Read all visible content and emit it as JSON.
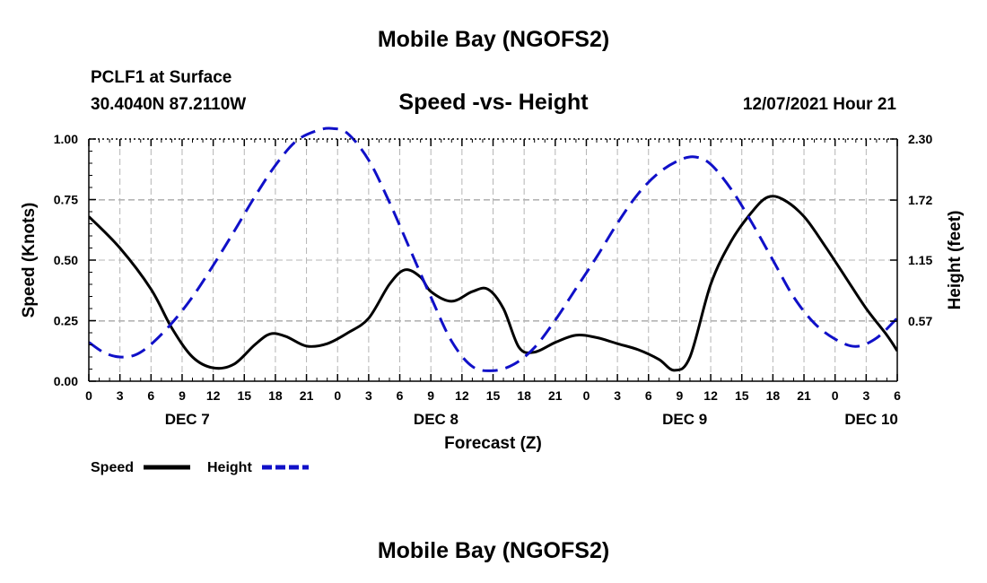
{
  "header": {
    "title": "Mobile Bay (NGOFS2)",
    "station": "PCLF1 at Surface",
    "coords": "30.4040N  87.2110W",
    "subtitle": "Speed -vs- Height",
    "datetime": "12/07/2021 Hour 21"
  },
  "footer": {
    "title": "Mobile Bay (NGOFS2)"
  },
  "colors": {
    "speed": "#000000",
    "height": "#1010c8",
    "grid": "#b4b4b4"
  },
  "chart_data": {
    "type": "line",
    "title": "Speed -vs- Height",
    "xlabel": "Forecast (Z)",
    "ylabel": "Speed (Knots)",
    "y2label": "Height (feet)",
    "x_unit": "hours from 00Z DEC 7",
    "xlim": [
      0,
      78
    ],
    "ylim": [
      0,
      1.0
    ],
    "y2lim": [
      0.0,
      2.3
    ],
    "x_ticks": [
      {
        "x": 0,
        "label": "0"
      },
      {
        "x": 3,
        "label": "3"
      },
      {
        "x": 6,
        "label": "6"
      },
      {
        "x": 9,
        "label": "9"
      },
      {
        "x": 12,
        "label": "12"
      },
      {
        "x": 15,
        "label": "15"
      },
      {
        "x": 18,
        "label": "18"
      },
      {
        "x": 21,
        "label": "21"
      },
      {
        "x": 24,
        "label": "0"
      },
      {
        "x": 27,
        "label": "3"
      },
      {
        "x": 30,
        "label": "6"
      },
      {
        "x": 33,
        "label": "9"
      },
      {
        "x": 36,
        "label": "12"
      },
      {
        "x": 39,
        "label": "15"
      },
      {
        "x": 42,
        "label": "18"
      },
      {
        "x": 45,
        "label": "21"
      },
      {
        "x": 48,
        "label": "0"
      },
      {
        "x": 51,
        "label": "3"
      },
      {
        "x": 54,
        "label": "6"
      },
      {
        "x": 57,
        "label": "9"
      },
      {
        "x": 60,
        "label": "12"
      },
      {
        "x": 63,
        "label": "15"
      },
      {
        "x": 66,
        "label": "18"
      },
      {
        "x": 69,
        "label": "21"
      },
      {
        "x": 72,
        "label": "0"
      },
      {
        "x": 75,
        "label": "3"
      },
      {
        "x": 78,
        "label": "6"
      }
    ],
    "day_labels": [
      {
        "x": 9.5,
        "label": "DEC 7"
      },
      {
        "x": 33.5,
        "label": "DEC 8"
      },
      {
        "x": 57.5,
        "label": "DEC 9"
      },
      {
        "x": 75.5,
        "label": "DEC 10"
      }
    ],
    "y_ticks": [
      {
        "v": 0.0,
        "label": "0.00"
      },
      {
        "v": 0.25,
        "label": "0.25"
      },
      {
        "v": 0.5,
        "label": "0.50"
      },
      {
        "v": 0.75,
        "label": "0.75"
      },
      {
        "v": 1.0,
        "label": "1.00"
      }
    ],
    "y2_ticks": [
      {
        "v": 0.57,
        "label": "0.57"
      },
      {
        "v": 1.15,
        "label": "1.15"
      },
      {
        "v": 1.72,
        "label": "1.72"
      },
      {
        "v": 2.3,
        "label": "2.30"
      }
    ],
    "legend": [
      {
        "label": "Speed",
        "series": "speed"
      },
      {
        "label": "Height",
        "series": "height"
      }
    ],
    "series": [
      {
        "name": "Speed",
        "key": "speed",
        "axis": "left",
        "dash": false,
        "points": [
          [
            0,
            0.68
          ],
          [
            3,
            0.55
          ],
          [
            6,
            0.38
          ],
          [
            8,
            0.22
          ],
          [
            10,
            0.1
          ],
          [
            12,
            0.055
          ],
          [
            14,
            0.07
          ],
          [
            16,
            0.15
          ],
          [
            17.5,
            0.195
          ],
          [
            19,
            0.185
          ],
          [
            21,
            0.145
          ],
          [
            23,
            0.155
          ],
          [
            25,
            0.2
          ],
          [
            27,
            0.26
          ],
          [
            29,
            0.4
          ],
          [
            30.5,
            0.46
          ],
          [
            32,
            0.43
          ],
          [
            33,
            0.37
          ],
          [
            35,
            0.33
          ],
          [
            37,
            0.37
          ],
          [
            38.5,
            0.38
          ],
          [
            40,
            0.3
          ],
          [
            41.5,
            0.14
          ],
          [
            43,
            0.12
          ],
          [
            45,
            0.16
          ],
          [
            47,
            0.19
          ],
          [
            49,
            0.18
          ],
          [
            51,
            0.155
          ],
          [
            53,
            0.13
          ],
          [
            55,
            0.09
          ],
          [
            56.5,
            0.045
          ],
          [
            58,
            0.1
          ],
          [
            60,
            0.4
          ],
          [
            62,
            0.58
          ],
          [
            64,
            0.7
          ],
          [
            65.5,
            0.76
          ],
          [
            67,
            0.75
          ],
          [
            69,
            0.68
          ],
          [
            71,
            0.56
          ],
          [
            73,
            0.43
          ],
          [
            75,
            0.3
          ],
          [
            77,
            0.19
          ],
          [
            78,
            0.125
          ]
        ]
      },
      {
        "name": "Height",
        "key": "height",
        "axis": "right",
        "dash": true,
        "points": [
          [
            0,
            0.37
          ],
          [
            1.5,
            0.27
          ],
          [
            3,
            0.23
          ],
          [
            4.5,
            0.25
          ],
          [
            6,
            0.35
          ],
          [
            8,
            0.55
          ],
          [
            10,
            0.8
          ],
          [
            12,
            1.1
          ],
          [
            14,
            1.42
          ],
          [
            16,
            1.75
          ],
          [
            18,
            2.05
          ],
          [
            20,
            2.28
          ],
          [
            22,
            2.38
          ],
          [
            23.5,
            2.4
          ],
          [
            25,
            2.35
          ],
          [
            27,
            2.1
          ],
          [
            29,
            1.7
          ],
          [
            31,
            1.25
          ],
          [
            33,
            0.8
          ],
          [
            35,
            0.38
          ],
          [
            37,
            0.14
          ],
          [
            39,
            0.1
          ],
          [
            41,
            0.16
          ],
          [
            43,
            0.32
          ],
          [
            45,
            0.58
          ],
          [
            47,
            0.88
          ],
          [
            49,
            1.18
          ],
          [
            51,
            1.5
          ],
          [
            53,
            1.78
          ],
          [
            55,
            1.98
          ],
          [
            57,
            2.1
          ],
          [
            58.5,
            2.13
          ],
          [
            60,
            2.06
          ],
          [
            62,
            1.82
          ],
          [
            64,
            1.5
          ],
          [
            66,
            1.15
          ],
          [
            68,
            0.8
          ],
          [
            70,
            0.55
          ],
          [
            72,
            0.4
          ],
          [
            74,
            0.33
          ],
          [
            76,
            0.41
          ],
          [
            78,
            0.6
          ]
        ]
      }
    ]
  }
}
